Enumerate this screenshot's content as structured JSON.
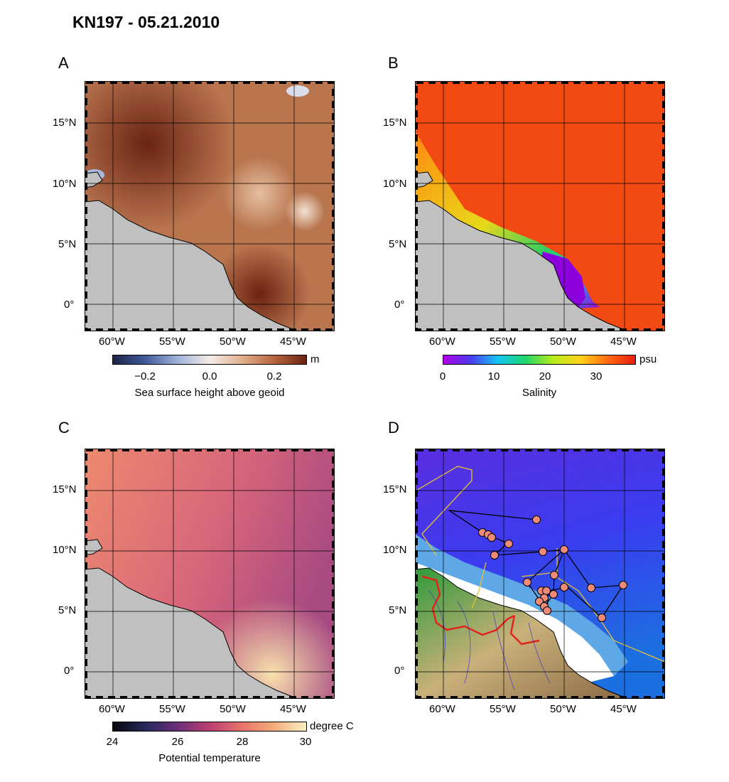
{
  "title": "KN197 - 05.21.2010",
  "axes": {
    "lat_labels": [
      "15°N",
      "10°N",
      "5°N",
      "0°"
    ],
    "lon_labels": [
      "60°W",
      "55°W",
      "50°W",
      "45°W"
    ]
  },
  "panels": {
    "A": {
      "letter": "A",
      "colorbar": {
        "unit": "m",
        "ticks": [
          "−0.2",
          "0.0",
          "0.2"
        ],
        "title": "Sea surface height above geoid",
        "colors": [
          "#1d2346",
          "#3f5a9a",
          "#9db2d8",
          "#f4ece6",
          "#e2b08e",
          "#b7653c",
          "#6b2211"
        ]
      }
    },
    "B": {
      "letter": "B",
      "colorbar": {
        "unit": "psu",
        "ticks": [
          "0",
          "10",
          "20",
          "30"
        ],
        "title": "Salinity",
        "colors": [
          "#b000e6",
          "#4a3cf0",
          "#13c6f2",
          "#1fd66a",
          "#b6ec1a",
          "#ffd21a",
          "#ff6a12",
          "#e81d0c"
        ]
      }
    },
    "C": {
      "letter": "C",
      "colorbar": {
        "unit": "degree C",
        "ticks": [
          "24",
          "26",
          "28",
          "30"
        ],
        "title": "Potential temperature",
        "colors": [
          "#07070d",
          "#26295a",
          "#6b2f79",
          "#bb3f72",
          "#e8726b",
          "#f2ad7a",
          "#f9efc3"
        ]
      }
    },
    "D": {
      "letter": "D"
    }
  },
  "colors": {
    "land": "#c0c0c0",
    "station": "#f08a78",
    "eez_line": "#e6c232",
    "border_line": "#e0251c"
  }
}
